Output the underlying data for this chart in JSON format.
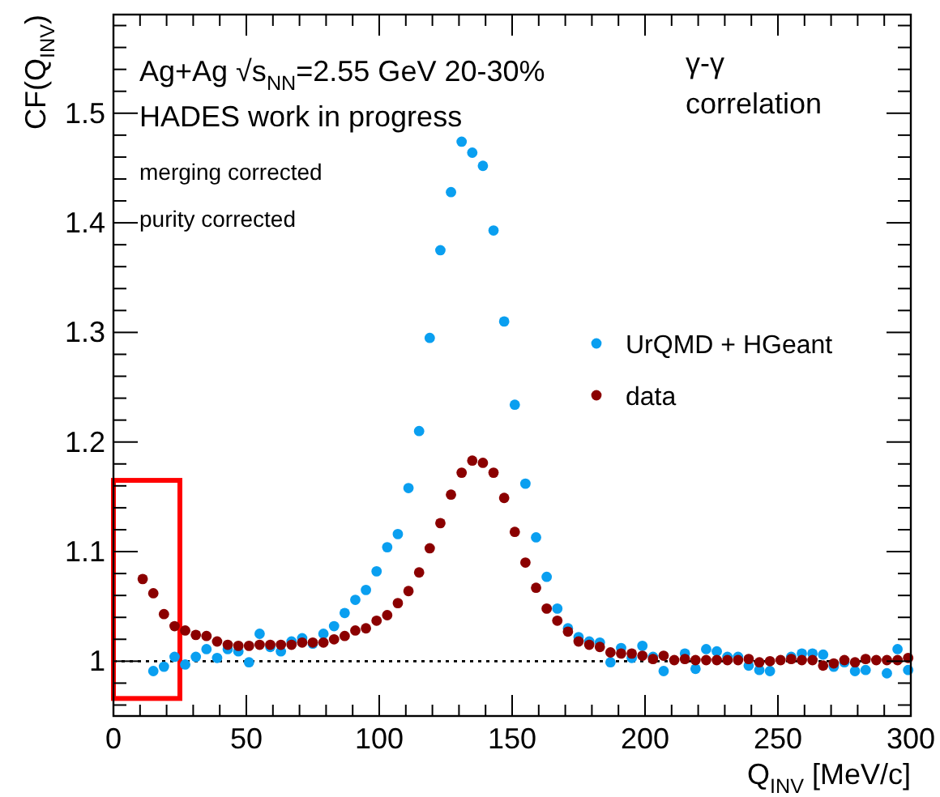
{
  "chart_data": {
    "type": "scatter",
    "xlabel": "Q$_{INV}$ [MeV/c]",
    "ylabel": "CF(Q$_{INV}$)",
    "annotations": [
      "Ag+Ag √s$_{NN}$=2.55 GeV 20-30%",
      "HADES work in progress",
      "merging corrected",
      "purity corrected",
      "γ-γ",
      "correlation"
    ],
    "xlim": [
      0,
      300
    ],
    "ylim": [
      0.95,
      1.59
    ],
    "xticks": [
      0,
      {
        "value": 10,
        "label": null
      },
      {
        "value": 20,
        "label": null
      },
      {
        "value": 30,
        "label": null
      },
      {
        "value": 40,
        "label": null
      },
      50,
      {
        "value": 60,
        "label": null
      },
      {
        "value": 70,
        "label": null
      },
      {
        "value": 80,
        "label": null
      },
      {
        "value": 90,
        "label": null
      },
      100,
      {
        "value": 110,
        "label": null
      },
      {
        "value": 120,
        "label": null
      },
      {
        "value": 130,
        "label": null
      },
      {
        "value": 140,
        "label": null
      },
      150,
      {
        "value": 160,
        "label": null
      },
      {
        "value": 170,
        "label": null
      },
      {
        "value": 180,
        "label": null
      },
      {
        "value": 190,
        "label": null
      },
      200,
      {
        "value": 210,
        "label": null
      },
      {
        "value": 220,
        "label": null
      },
      {
        "value": 230,
        "label": null
      },
      {
        "value": 240,
        "label": null
      },
      250,
      {
        "value": 260,
        "label": null
      },
      {
        "value": 270,
        "label": null
      },
      {
        "value": 280,
        "label": null
      },
      {
        "value": 290,
        "label": null
      },
      300
    ],
    "yticks": [
      {
        "value": 0.96,
        "label": null
      },
      {
        "value": 0.98,
        "label": null
      },
      1,
      {
        "value": 1.02,
        "label": null
      },
      {
        "value": 1.04,
        "label": null
      },
      {
        "value": 1.06,
        "label": null
      },
      {
        "value": 1.08,
        "label": null
      },
      1.1,
      {
        "value": 1.12,
        "label": null
      },
      {
        "value": 1.14,
        "label": null
      },
      {
        "value": 1.16,
        "label": null
      },
      {
        "value": 1.18,
        "label": null
      },
      1.2,
      {
        "value": 1.22,
        "label": null
      },
      {
        "value": 1.24,
        "label": null
      },
      {
        "value": 1.26,
        "label": null
      },
      {
        "value": 1.28,
        "label": null
      },
      1.3,
      {
        "value": 1.32,
        "label": null
      },
      {
        "value": 1.34,
        "label": null
      },
      {
        "value": 1.36,
        "label": null
      },
      {
        "value": 1.38,
        "label": null
      },
      1.4,
      {
        "value": 1.42,
        "label": null
      },
      {
        "value": 1.44,
        "label": null
      },
      {
        "value": 1.46,
        "label": null
      },
      {
        "value": 1.48,
        "label": null
      },
      1.5,
      {
        "value": 1.52,
        "label": null
      },
      {
        "value": 1.54,
        "label": null
      },
      {
        "value": 1.56,
        "label": null
      },
      {
        "value": 1.58,
        "label": null
      }
    ],
    "marker": "circle",
    "legend": "right",
    "grid": false,
    "ref_lines": [
      {
        "axis": "y",
        "value": 1,
        "color": "#000000",
        "line_style": "dotted"
      }
    ],
    "series": [
      {
        "name": "UrQMD + HGeant",
        "color": "#0a9ff0",
        "x": [
          15,
          19,
          23,
          27,
          31,
          35,
          39,
          43,
          47,
          51,
          55,
          59,
          63,
          67,
          71,
          75,
          79,
          83,
          87,
          91,
          95,
          99,
          103,
          107,
          111,
          115,
          119,
          123,
          127,
          131,
          135,
          139,
          143,
          147,
          151,
          155,
          159,
          163,
          167,
          171,
          175,
          179,
          183,
          187,
          191,
          195,
          199,
          203,
          207,
          215,
          219,
          223,
          227,
          231,
          235,
          239,
          243,
          247,
          255,
          259,
          263,
          267,
          271,
          275,
          279,
          283,
          291,
          295,
          299
        ],
        "values": [
          0.991,
          0.995,
          1.004,
          0.997,
          1.004,
          1.011,
          1.003,
          1.011,
          1.009,
          0.999,
          1.025,
          1.013,
          1.009,
          1.018,
          1.021,
          1.016,
          1.025,
          1.032,
          1.044,
          1.056,
          1.065,
          1.082,
          1.104,
          1.116,
          1.158,
          1.21,
          1.295,
          1.375,
          1.428,
          1.474,
          1.464,
          1.452,
          1.393,
          1.31,
          1.234,
          1.162,
          1.113,
          1.077,
          1.048,
          1.03,
          1.022,
          1.018,
          1.017,
          0.999,
          1.012,
          1.003,
          1.014,
          1.004,
          0.991,
          1.007,
          0.993,
          1.011,
          1.009,
          1.004,
          1.004,
          0.996,
          0.992,
          0.991,
          1.004,
          1.007,
          1.007,
          1.006,
          0.995,
          0.999,
          0.991,
          0.992,
          0.989,
          1.011,
          0.992
        ]
      },
      {
        "name": "data",
        "color": "#8b0000",
        "x": [
          11,
          15,
          19,
          23,
          27,
          31,
          35,
          39,
          43,
          47,
          51,
          55,
          59,
          63,
          67,
          71,
          75,
          79,
          83,
          87,
          91,
          95,
          99,
          103,
          107,
          111,
          115,
          119,
          123,
          127,
          131,
          135,
          139,
          143,
          147,
          151,
          155,
          159,
          163,
          167,
          171,
          175,
          179,
          183,
          187,
          191,
          195,
          199,
          203,
          207,
          211,
          215,
          219,
          223,
          227,
          231,
          235,
          239,
          243,
          247,
          251,
          255,
          259,
          263,
          267,
          271,
          275,
          279,
          283,
          287,
          291,
          295,
          299
        ],
        "values": [
          1.075,
          1.062,
          1.043,
          1.032,
          1.028,
          1.024,
          1.023,
          1.018,
          1.015,
          1.014,
          1.014,
          1.015,
          1.015,
          1.015,
          1.015,
          1.017,
          1.017,
          1.017,
          1.02,
          1.023,
          1.028,
          1.03,
          1.037,
          1.042,
          1.053,
          1.064,
          1.081,
          1.103,
          1.126,
          1.152,
          1.172,
          1.183,
          1.181,
          1.172,
          1.149,
          1.118,
          1.09,
          1.067,
          1.048,
          1.037,
          1.027,
          1.018,
          1.015,
          1.013,
          1.008,
          1.007,
          1.007,
          1.005,
          1.002,
          1.005,
          1.001,
          1.002,
          1.001,
          1.001,
          1.001,
          1.001,
          1.001,
          1.002,
          0.999,
          1.0,
          1.001,
          1.002,
          1.001,
          1.001,
          0.996,
          0.998,
          1.001,
          0.999,
          1.002,
          1.001,
          1.001,
          1.001,
          1.003
        ]
      }
    ]
  }
}
